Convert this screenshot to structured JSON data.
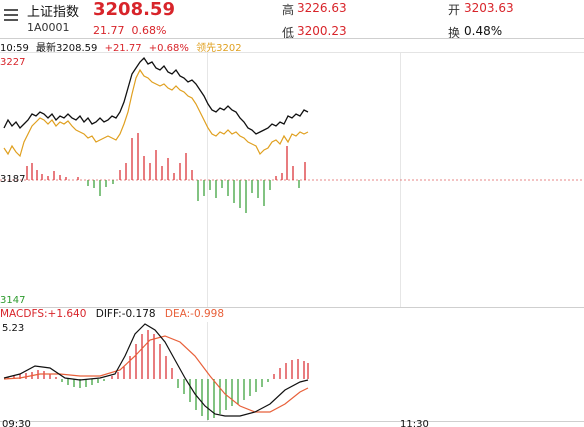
{
  "header": {
    "index_name": "上证指数",
    "index_code": "1A0001",
    "price": "3208.59",
    "change_abs": "21.77",
    "change_pct": "0.68%",
    "high_label": "高",
    "high_value": "3226.63",
    "open_label": "开",
    "open_value": "3203.63",
    "low_label": "低",
    "low_value": "3200.23",
    "turnover_label": "换",
    "turnover_value": "0.48%"
  },
  "legend": {
    "time": "10:59",
    "latest_label": "最新3208.59",
    "change": "+21.77",
    "change_pct": "+0.68%",
    "leader_label": "领先3202"
  },
  "axis": {
    "price_top": "3227",
    "price_mid": "3187",
    "price_bottom": "3147",
    "macd_top": "5.23",
    "time_start": "09:30",
    "time_mid": "11:30"
  },
  "macd": {
    "macd_label": "MACDFS:+1.640",
    "diff_label": "DIFF:-0.178",
    "dea_label": "DEA:-0.998"
  },
  "colors": {
    "up": "#d8242a",
    "down": "#2e9b2e",
    "price_line": "#111111",
    "leader_line": "#e0a020",
    "dea_line": "#e8603a",
    "grid": "#dddddd",
    "baseline": "#d8242a"
  },
  "icons": {
    "menu": "menu-icon"
  }
}
